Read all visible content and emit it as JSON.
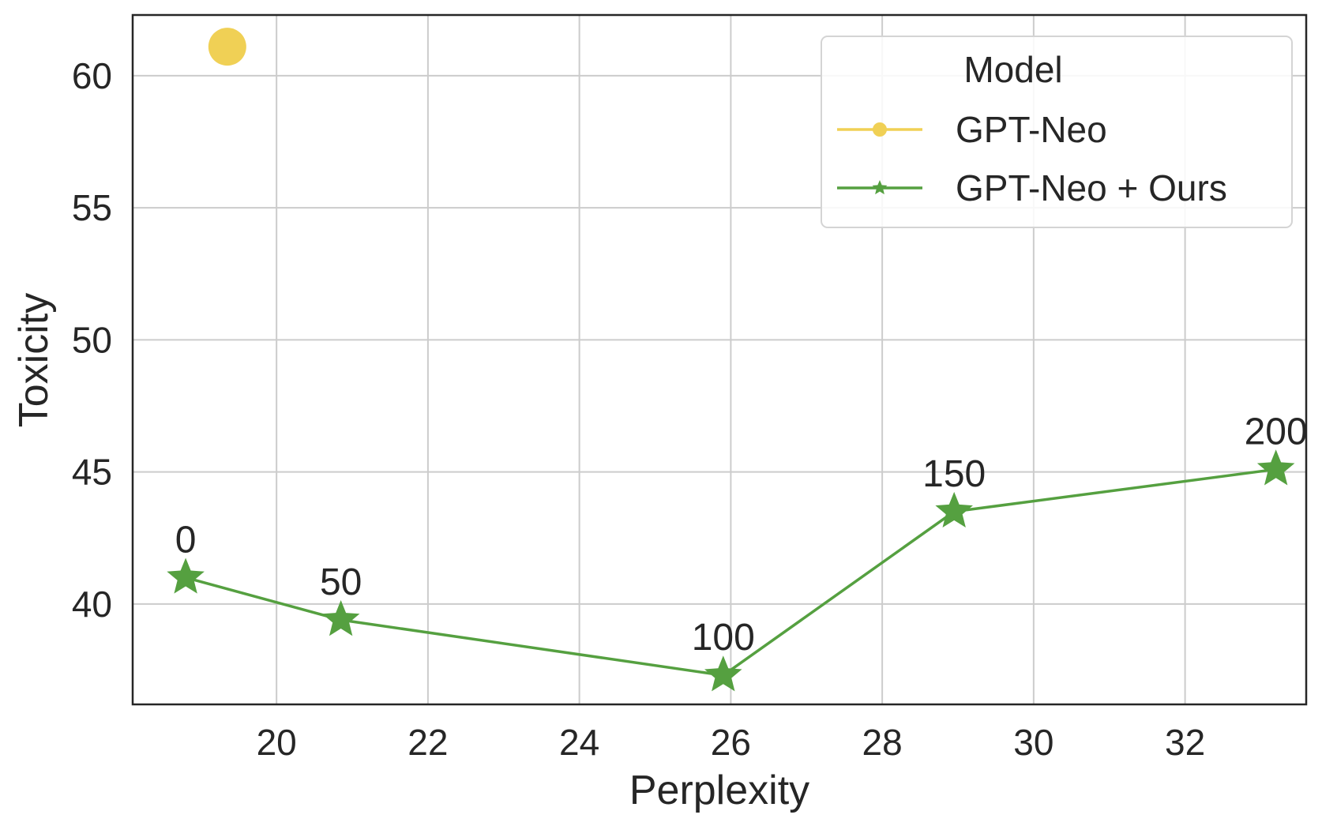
{
  "chart_data": {
    "type": "line",
    "xlabel": "Perplexity",
    "ylabel": "Toxicity",
    "xlim": [
      18.1,
      33.6
    ],
    "ylim": [
      36.2,
      62.3
    ],
    "xticks": [
      20,
      22,
      24,
      26,
      28,
      30,
      32
    ],
    "yticks": [
      40,
      45,
      50,
      55,
      60
    ],
    "grid": true,
    "legend": {
      "title": "Model",
      "placement": "top-right",
      "entries": [
        "GPT-Neo",
        "GPT-Neo + Ours"
      ]
    },
    "series": [
      {
        "name": "GPT-Neo",
        "color": "#f0d055",
        "marker": "circle",
        "points": [
          {
            "x": 19.35,
            "y": 61.1
          }
        ]
      },
      {
        "name": "GPT-Neo + Ours",
        "color": "#55a040",
        "marker": "star",
        "points": [
          {
            "x": 18.8,
            "y": 41.0,
            "label": "0"
          },
          {
            "x": 20.85,
            "y": 39.4,
            "label": "50"
          },
          {
            "x": 25.9,
            "y": 37.3,
            "label": "100"
          },
          {
            "x": 28.95,
            "y": 43.5,
            "label": "150"
          },
          {
            "x": 33.2,
            "y": 45.1,
            "label": "200"
          }
        ]
      }
    ]
  }
}
